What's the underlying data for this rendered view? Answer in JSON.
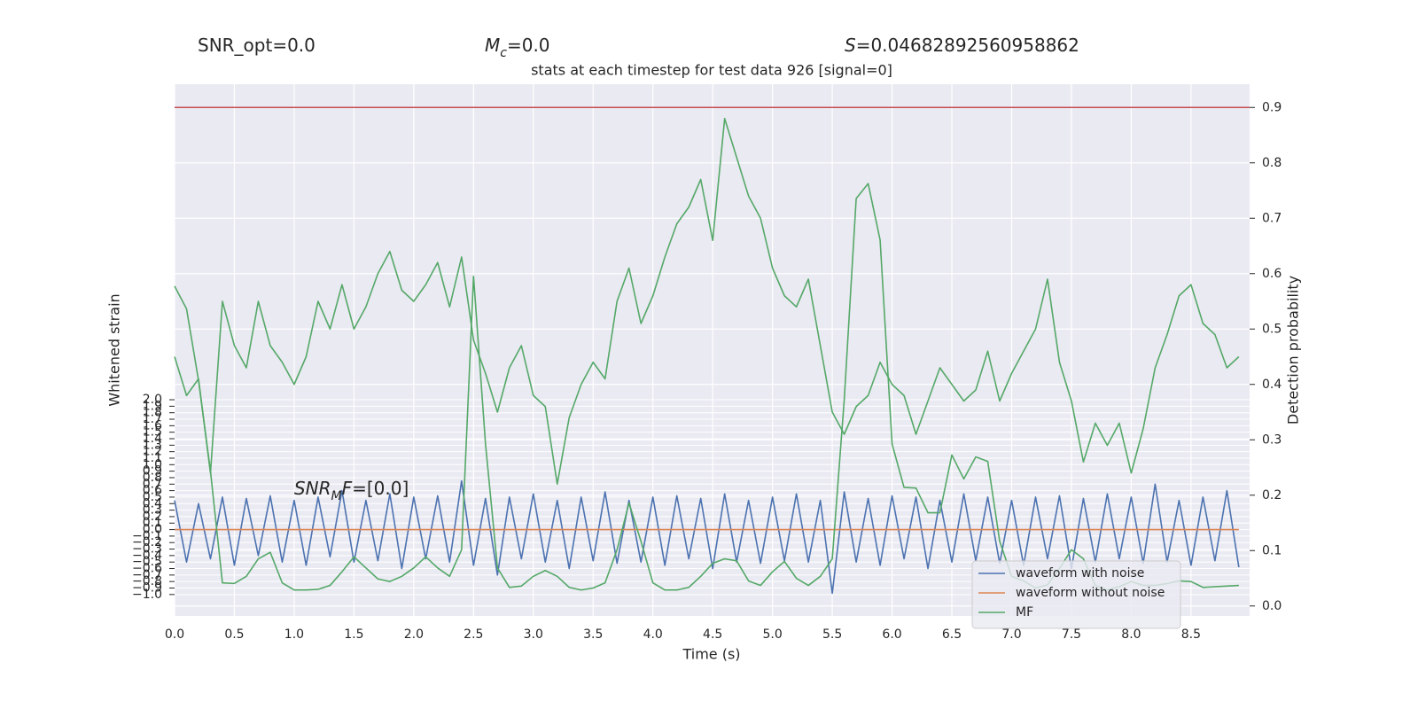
{
  "chart_data": {
    "type": "line",
    "title": "stats at each timestep for test data 926 [signal=0]",
    "header": [
      {
        "text": "SNR_opt=0.0"
      },
      {
        "italic": "M",
        "sub": "c",
        "text": "=0.0"
      },
      {
        "italic": "S",
        "text": "=0.04682892560958862"
      }
    ],
    "annotation": {
      "italic": "SNR",
      "sub": "M",
      "italic2": "F",
      "text": "=[0.0]"
    },
    "xlabel": "Time (s)",
    "ylabel": "Whitened strain",
    "y2label": "Detection probability",
    "x": [
      0,
      0.1,
      0.2,
      0.3,
      0.4,
      0.5,
      0.6,
      0.7,
      0.8,
      0.9,
      1,
      1.1,
      1.2,
      1.3,
      1.4,
      1.5,
      1.6,
      1.7,
      1.8,
      1.9,
      2,
      2.1,
      2.2,
      2.3,
      2.4,
      2.5,
      2.6,
      2.7,
      2.8,
      2.9,
      3,
      3.1,
      3.2,
      3.3,
      3.4,
      3.5,
      3.6,
      3.7,
      3.8,
      3.9,
      4,
      4.1,
      4.2,
      4.3,
      4.4,
      4.5,
      4.6,
      4.7,
      4.8,
      4.9,
      5,
      5.1,
      5.2,
      5.3,
      5.4,
      5.5,
      5.6,
      5.7,
      5.8,
      5.9,
      6,
      6.1,
      6.2,
      6.3,
      6.4,
      6.5,
      6.6,
      6.7,
      6.8,
      6.9,
      7,
      7.1,
      7.2,
      7.3,
      7.4,
      7.5,
      7.6,
      7.7,
      7.8,
      7.9,
      8,
      8.1,
      8.2,
      8.3,
      8.4,
      8.5,
      8.6,
      8.7,
      8.8,
      8.9
    ],
    "series": [
      {
        "name": "waveform with noise",
        "color": "#4c72b0",
        "axis": "y",
        "values": [
          0.45,
          -0.5,
          0.4,
          -0.45,
          0.5,
          -0.55,
          0.48,
          -0.4,
          0.52,
          -0.5,
          0.45,
          -0.55,
          0.5,
          -0.42,
          0.6,
          -0.5,
          0.45,
          -0.48,
          0.55,
          -0.6,
          0.5,
          -0.45,
          0.52,
          -0.5,
          0.75,
          -0.55,
          0.48,
          -0.7,
          0.5,
          -0.45,
          0.55,
          -0.5,
          0.45,
          -0.6,
          0.5,
          -0.48,
          0.58,
          -0.52,
          0.45,
          -0.5,
          0.5,
          -0.55,
          0.52,
          -0.45,
          0.48,
          -0.6,
          0.55,
          -0.5,
          0.45,
          -0.52,
          0.5,
          -0.48,
          0.55,
          -0.5,
          0.45,
          -0.98,
          0.58,
          -0.5,
          0.48,
          -0.55,
          0.52,
          -0.45,
          0.5,
          -0.6,
          0.45,
          -0.5,
          0.55,
          -0.48,
          0.5,
          -0.52,
          0.45,
          -0.55,
          0.5,
          -0.45,
          0.52,
          -0.6,
          0.48,
          -0.5,
          0.55,
          -0.45,
          0.5,
          -0.52,
          0.7,
          -0.5,
          0.45,
          -0.55,
          0.5,
          -0.48,
          0.6,
          -0.58
        ]
      },
      {
        "name": "waveform without noise",
        "color": "#dd8452",
        "axis": "y",
        "values": [
          0,
          0,
          0,
          0,
          0,
          0,
          0,
          0,
          0,
          0,
          0,
          0,
          0,
          0,
          0,
          0,
          0,
          0,
          0,
          0,
          0,
          0,
          0,
          0,
          0,
          0,
          0,
          0,
          0,
          0,
          0,
          0,
          0,
          0,
          0,
          0,
          0,
          0,
          0,
          0,
          0,
          0,
          0,
          0,
          0,
          0,
          0,
          0,
          0,
          0,
          0,
          0,
          0,
          0,
          0,
          0,
          0,
          0,
          0,
          0,
          0,
          0,
          0,
          0,
          0,
          0,
          0,
          0,
          0,
          0,
          0,
          0,
          0,
          0,
          0,
          0,
          0,
          0,
          0,
          0,
          0,
          0,
          0,
          0,
          0,
          0,
          0,
          0,
          0,
          0
        ]
      },
      {
        "name": "MF",
        "color": "#55a868",
        "axis": "y",
        "values": [
          3.75,
          3.4,
          2.3,
          0.9,
          -0.82,
          -0.83,
          -0.72,
          -0.45,
          -0.35,
          -0.82,
          -0.93,
          -0.93,
          -0.92,
          -0.86,
          -0.65,
          -0.42,
          -0.59,
          -0.76,
          -0.8,
          -0.72,
          -0.59,
          -0.42,
          -0.59,
          -0.72,
          -0.31,
          3.9,
          1.32,
          -0.59,
          -0.89,
          -0.87,
          -0.72,
          -0.63,
          -0.72,
          -0.89,
          -0.93,
          -0.9,
          -0.82,
          -0.31,
          0.41,
          -0.18,
          -0.82,
          -0.93,
          -0.93,
          -0.89,
          -0.72,
          -0.52,
          -0.45,
          -0.48,
          -0.79,
          -0.86,
          -0.65,
          -0.49,
          -0.75,
          -0.86,
          -0.72,
          -0.45,
          2.0,
          5.1,
          5.33,
          4.46,
          1.32,
          0.65,
          0.64,
          0.26,
          0.26,
          1.15,
          0.78,
          1.12,
          1.05,
          -0.18,
          -0.72,
          -0.79,
          -0.9,
          -0.85,
          -0.6,
          -0.31,
          -0.45,
          -0.86,
          -0.93,
          -0.88,
          -0.8,
          -0.86,
          -0.86,
          -0.83,
          -0.79,
          -0.8,
          -0.89,
          -0.88,
          -0.87,
          -0.86
        ]
      },
      {
        "color": "#55a868",
        "axis": "y2",
        "values": [
          0.45,
          0.38,
          0.41,
          0.24,
          0.55,
          0.47,
          0.43,
          0.55,
          0.47,
          0.44,
          0.4,
          0.45,
          0.55,
          0.5,
          0.58,
          0.5,
          0.54,
          0.6,
          0.64,
          0.57,
          0.55,
          0.58,
          0.62,
          0.54,
          0.63,
          0.48,
          0.42,
          0.35,
          0.43,
          0.47,
          0.38,
          0.36,
          0.22,
          0.34,
          0.4,
          0.44,
          0.41,
          0.55,
          0.61,
          0.51,
          0.56,
          0.63,
          0.69,
          0.72,
          0.77,
          0.66,
          0.88,
          0.81,
          0.74,
          0.7,
          0.61,
          0.56,
          0.54,
          0.59,
          0.47,
          0.35,
          0.31,
          0.36,
          0.38,
          0.44,
          0.4,
          0.38,
          0.31,
          0.37,
          0.43,
          0.4,
          0.37,
          0.39,
          0.46,
          0.37,
          0.42,
          0.46,
          0.5,
          0.59,
          0.44,
          0.37,
          0.26,
          0.33,
          0.29,
          0.33,
          0.24,
          0.32,
          0.43,
          0.49,
          0.56,
          0.58,
          0.51,
          0.49,
          0.43,
          0.45
        ]
      }
    ],
    "hlines": [
      {
        "value": 0.9,
        "axis": "y2",
        "color": "#c44e52"
      }
    ],
    "xlim": [
      0,
      8.99
    ],
    "xticks": [
      {
        "value": 0,
        "label": "0.0"
      },
      0.5,
      {
        "value": 1,
        "label": "1.0"
      },
      1.5,
      {
        "value": 2,
        "label": "2.0"
      },
      2.5,
      {
        "value": 3,
        "label": "3.0"
      },
      3.5,
      {
        "value": 4,
        "label": "4.0"
      },
      4.5,
      {
        "value": 5,
        "label": "5.0"
      },
      5.5,
      {
        "value": 6,
        "label": "6.0"
      },
      6.5,
      {
        "value": 7,
        "label": "7.0"
      },
      7.5,
      {
        "value": 8,
        "label": "8.0"
      },
      8.5
    ],
    "ylim": [
      -1.33,
      6.86
    ],
    "yticks": [
      {
        "value": -1,
        "label": "−1.0"
      },
      {
        "value": -0.9,
        "label": "−0.9"
      },
      {
        "value": -0.8,
        "label": "−0.8"
      },
      {
        "value": -0.7,
        "label": "−0.7"
      },
      {
        "value": -0.6,
        "label": "−0.6"
      },
      {
        "value": -0.5,
        "label": "−0.5"
      },
      {
        "value": -0.4,
        "label": "−0.4"
      },
      {
        "value": -0.3,
        "label": "−0.3"
      },
      {
        "value": -0.2,
        "label": "−0.2"
      },
      {
        "value": -0.1,
        "label": "−0.1"
      },
      {
        "value": 0,
        "label": "0.0"
      },
      0.1,
      0.2,
      0.3,
      0.4,
      0.5,
      0.6,
      0.7,
      0.8,
      0.9,
      {
        "value": 1,
        "label": "1.0"
      },
      1.1,
      1.2,
      1.3,
      1.4,
      1.5,
      1.6,
      1.7,
      1.8,
      1.9,
      {
        "value": 2,
        "label": "2.0"
      }
    ],
    "y2lim": [
      -0.018,
      0.942
    ],
    "y2ticks": [
      {
        "value": 0,
        "label": "0.0"
      },
      0.1,
      0.2,
      0.3,
      0.4,
      0.5,
      0.6,
      0.7,
      0.8,
      0.9
    ],
    "grid": true,
    "legend": "lower right",
    "background": "#eaeaf2"
  }
}
